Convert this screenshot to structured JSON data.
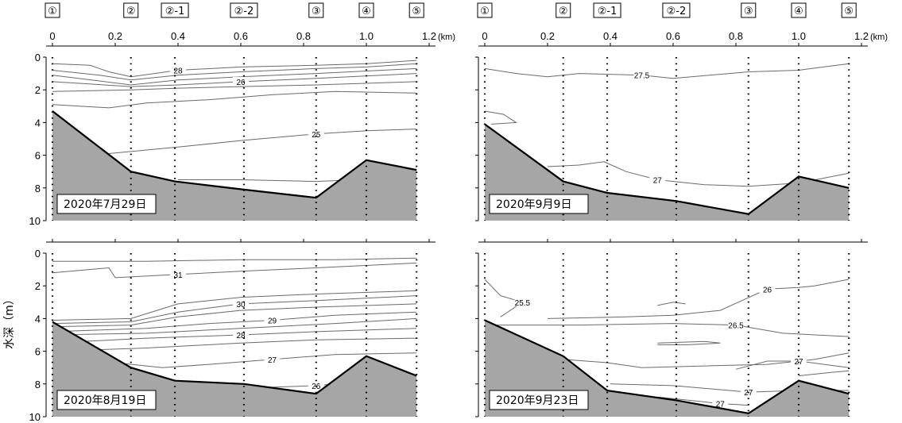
{
  "chart_data": {
    "type": "contour",
    "ylabel": "水深（m）",
    "x_unit": "(km)",
    "xlim": [
      0,
      1.2
    ],
    "ylim": [
      0,
      10
    ],
    "x_ticks": [
      "0",
      "0.2",
      "0.4",
      "0.6",
      "0.8",
      "1.0",
      "1.2"
    ],
    "y_ticks": [
      "0",
      "2",
      "4",
      "6",
      "8",
      "10"
    ],
    "stations": [
      {
        "label": "①",
        "x": 0.0
      },
      {
        "label": "②",
        "x": 0.25
      },
      {
        "label": "②-1",
        "x": 0.39
      },
      {
        "label": "②-2",
        "x": 0.61
      },
      {
        "label": "③",
        "x": 0.84
      },
      {
        "label": "④",
        "x": 1.0
      },
      {
        "label": "⑤",
        "x": 1.16
      }
    ],
    "panels": [
      {
        "date": "2020年7月29日",
        "bottom": [
          [
            0,
            3.3
          ],
          [
            0.25,
            7.0
          ],
          [
            0.39,
            7.6
          ],
          [
            0.61,
            8.1
          ],
          [
            0.84,
            8.6
          ],
          [
            1.0,
            6.3
          ],
          [
            1.16,
            6.9
          ]
        ],
        "contours": [
          {
            "level": "28",
            "points": [
              [
                0,
                0.4
              ],
              [
                0.12,
                0.5
              ],
              [
                0.18,
                0.9
              ],
              [
                0.25,
                1.2
              ],
              [
                0.4,
                0.8
              ],
              [
                0.6,
                0.6
              ],
              [
                0.84,
                0.5
              ],
              [
                1.0,
                0.4
              ],
              [
                1.16,
                0.2
              ]
            ]
          },
          {
            "level": "",
            "points": [
              [
                0,
                0.8
              ],
              [
                0.15,
                1.1
              ],
              [
                0.25,
                1.4
              ],
              [
                0.4,
                1.1
              ],
              [
                0.6,
                0.9
              ],
              [
                0.84,
                0.7
              ],
              [
                1.0,
                0.6
              ],
              [
                1.16,
                0.4
              ]
            ]
          },
          {
            "level": "",
            "points": [
              [
                0,
                1.1
              ],
              [
                0.25,
                1.7
              ],
              [
                0.4,
                1.4
              ],
              [
                0.6,
                1.2
              ],
              [
                0.84,
                1.0
              ],
              [
                1.16,
                0.7
              ]
            ]
          },
          {
            "level": "26",
            "points": [
              [
                0,
                1.5
              ],
              [
                0.25,
                1.8
              ],
              [
                0.4,
                1.7
              ],
              [
                0.6,
                1.5
              ],
              [
                0.84,
                1.3
              ],
              [
                1.16,
                1.0
              ]
            ]
          },
          {
            "level": "",
            "points": [
              [
                0,
                2.1
              ],
              [
                0.25,
                2.0
              ],
              [
                0.4,
                1.9
              ],
              [
                0.6,
                1.8
              ],
              [
                0.84,
                1.7
              ],
              [
                1.16,
                1.5
              ]
            ]
          },
          {
            "level": "",
            "points": [
              [
                0,
                2.9
              ],
              [
                0.18,
                3.1
              ],
              [
                0.3,
                2.8
              ],
              [
                0.5,
                2.6
              ],
              [
                0.7,
                2.3
              ],
              [
                0.9,
                2.1
              ],
              [
                1.16,
                2.2
              ]
            ]
          },
          {
            "level": "25",
            "points": [
              [
                0.18,
                5.9
              ],
              [
                0.4,
                5.5
              ],
              [
                0.6,
                5.1
              ],
              [
                0.84,
                4.7
              ],
              [
                1.0,
                4.5
              ],
              [
                1.16,
                4.4
              ]
            ]
          },
          {
            "level": "",
            "points": [
              [
                0.4,
                7.5
              ],
              [
                0.6,
                7.5
              ],
              [
                0.84,
                7.6
              ],
              [
                0.97,
                7.5
              ]
            ]
          }
        ]
      },
      {
        "date": "2020年8月19日",
        "bottom": [
          [
            0,
            4.2
          ],
          [
            0.25,
            7.0
          ],
          [
            0.39,
            7.8
          ],
          [
            0.61,
            8.0
          ],
          [
            0.84,
            8.6
          ],
          [
            1.0,
            6.3
          ],
          [
            1.16,
            7.5
          ]
        ],
        "contours": [
          {
            "level": "",
            "points": [
              [
                0,
                0.5
              ],
              [
                0.3,
                0.5
              ],
              [
                0.6,
                0.4
              ],
              [
                0.9,
                0.4
              ],
              [
                1.16,
                0.3
              ]
            ]
          },
          {
            "level": "31",
            "points": [
              [
                0,
                1.2
              ],
              [
                0.18,
                0.9
              ],
              [
                0.2,
                1.5
              ],
              [
                0.4,
                1.3
              ],
              [
                0.6,
                1.1
              ],
              [
                0.84,
                0.9
              ],
              [
                1.16,
                0.6
              ]
            ]
          },
          {
            "level": "",
            "points": [
              [
                0,
                4.1
              ],
              [
                0.25,
                4.0
              ],
              [
                0.4,
                3.1
              ],
              [
                0.6,
                2.7
              ],
              [
                0.84,
                2.5
              ],
              [
                1.16,
                2.3
              ]
            ]
          },
          {
            "level": "30",
            "points": [
              [
                0,
                4.3
              ],
              [
                0.25,
                4.2
              ],
              [
                0.4,
                3.6
              ],
              [
                0.6,
                3.1
              ],
              [
                0.84,
                2.9
              ],
              [
                1.16,
                2.6
              ]
            ]
          },
          {
            "level": "",
            "points": [
              [
                0,
                4.5
              ],
              [
                0.25,
                4.4
              ],
              [
                0.4,
                3.9
              ],
              [
                0.6,
                3.5
              ],
              [
                0.84,
                3.3
              ],
              [
                1.16,
                3.1
              ]
            ]
          },
          {
            "level": "29",
            "points": [
              [
                0,
                4.8
              ],
              [
                0.3,
                4.6
              ],
              [
                0.5,
                4.3
              ],
              [
                0.7,
                4.1
              ],
              [
                0.9,
                3.8
              ],
              [
                1.16,
                3.6
              ]
            ]
          },
          {
            "level": "",
            "points": [
              [
                0,
                5.0
              ],
              [
                0.3,
                4.9
              ],
              [
                0.5,
                4.7
              ],
              [
                0.7,
                4.5
              ],
              [
                0.9,
                4.3
              ],
              [
                1.16,
                4.0
              ]
            ]
          },
          {
            "level": "28",
            "points": [
              [
                0,
                5.5
              ],
              [
                0.3,
                5.2
              ],
              [
                0.6,
                5.0
              ],
              [
                0.84,
                4.8
              ],
              [
                1.16,
                4.6
              ]
            ]
          },
          {
            "level": "",
            "points": [
              [
                0,
                6.0
              ],
              [
                0.3,
                5.8
              ],
              [
                0.6,
                5.5
              ],
              [
                0.84,
                5.3
              ],
              [
                1.16,
                5.2
              ]
            ]
          },
          {
            "level": "27",
            "points": [
              [
                0.2,
                6.7
              ],
              [
                0.35,
                7.0
              ],
              [
                0.5,
                6.8
              ],
              [
                0.7,
                6.5
              ],
              [
                0.9,
                6.2
              ],
              [
                1.16,
                6.1
              ]
            ]
          },
          {
            "level": "26",
            "points": [
              [
                0.5,
                8.1
              ],
              [
                0.7,
                8.2
              ],
              [
                0.84,
                8.1
              ],
              [
                0.9,
                8.0
              ]
            ]
          }
        ]
      },
      {
        "date": "2020年9月9日",
        "bottom": [
          [
            0,
            4.1
          ],
          [
            0.25,
            7.6
          ],
          [
            0.39,
            8.3
          ],
          [
            0.61,
            8.8
          ],
          [
            0.84,
            9.6
          ],
          [
            1.0,
            7.3
          ],
          [
            1.16,
            8.0
          ]
        ],
        "contours": [
          {
            "level": "27.5",
            "points": [
              [
                0,
                0.7
              ],
              [
                0.1,
                1.0
              ],
              [
                0.2,
                1.2
              ],
              [
                0.3,
                1.0
              ],
              [
                0.5,
                1.1
              ],
              [
                0.6,
                1.3
              ],
              [
                0.84,
                0.9
              ],
              [
                1.0,
                0.8
              ],
              [
                1.16,
                0.4
              ]
            ]
          },
          {
            "level": "",
            "points": [
              [
                0,
                3.3
              ],
              [
                0.06,
                3.5
              ],
              [
                0.1,
                4.0
              ],
              [
                0.02,
                4.1
              ]
            ]
          },
          {
            "level": "27",
            "points": [
              [
                0.2,
                6.7
              ],
              [
                0.3,
                6.6
              ],
              [
                0.38,
                6.4
              ],
              [
                0.45,
                7.0
              ],
              [
                0.55,
                7.5
              ],
              [
                0.7,
                7.8
              ],
              [
                0.84,
                7.9
              ],
              [
                1.0,
                7.7
              ],
              [
                1.16,
                7.1
              ]
            ]
          }
        ]
      },
      {
        "date": "2020年9月23日",
        "bottom": [
          [
            0,
            4.1
          ],
          [
            0.25,
            6.3
          ],
          [
            0.39,
            8.4
          ],
          [
            0.61,
            9.0
          ],
          [
            0.84,
            9.8
          ],
          [
            1.0,
            7.8
          ],
          [
            1.16,
            8.6
          ]
        ],
        "contours": [
          {
            "level": "25.5",
            "points": [
              [
                0,
                1.6
              ],
              [
                0.05,
                2.6
              ],
              [
                0.12,
                3.0
              ],
              [
                0.05,
                3.9
              ]
            ]
          },
          {
            "level": "26",
            "points": [
              [
                0.2,
                4.0
              ],
              [
                0.45,
                3.9
              ],
              [
                0.6,
                3.8
              ],
              [
                0.75,
                3.5
              ],
              [
                0.9,
                2.2
              ],
              [
                1.0,
                2.1
              ],
              [
                1.05,
                2.0
              ],
              [
                1.16,
                1.6
              ]
            ]
          },
          {
            "level": "26.5",
            "points": [
              [
                0,
                4.4
              ],
              [
                0.3,
                4.4
              ],
              [
                0.6,
                4.3
              ],
              [
                0.8,
                4.4
              ],
              [
                0.95,
                4.9
              ],
              [
                1.16,
                5.1
              ]
            ]
          },
          {
            "level": "",
            "points": [
              [
                0.55,
                5.6
              ],
              [
                0.65,
                5.6
              ],
              [
                0.75,
                5.5
              ],
              [
                0.7,
                5.4
              ],
              [
                0.55,
                5.5
              ]
            ]
          },
          {
            "level": "",
            "points": [
              [
                0.55,
                3.2
              ],
              [
                0.6,
                3.0
              ],
              [
                0.64,
                3.1
              ]
            ]
          },
          {
            "level": "",
            "points": [
              [
                0.25,
                6.5
              ],
              [
                0.39,
                6.7
              ],
              [
                0.5,
                7.0
              ],
              [
                0.7,
                6.9
              ],
              [
                0.9,
                6.8
              ],
              [
                1.05,
                6.5
              ],
              [
                1.16,
                6.1
              ]
            ]
          },
          {
            "level": "27",
            "points": [
              [
                0.8,
                7.1
              ],
              [
                0.9,
                6.6
              ],
              [
                1.0,
                6.6
              ],
              [
                1.16,
                7.0
              ]
            ]
          },
          {
            "level": "27",
            "points": [
              [
                0.4,
                8.0
              ],
              [
                0.6,
                8.1
              ],
              [
                0.84,
                8.5
              ],
              [
                1.0,
                8.4
              ],
              [
                1.16,
                8.4
              ]
            ]
          },
          {
            "level": "27",
            "points": [
              [
                0.55,
                8.8
              ],
              [
                0.75,
                9.2
              ],
              [
                0.84,
                9.3
              ]
            ]
          },
          {
            "level": "",
            "points": [
              [
                1.0,
                7.5
              ],
              [
                1.1,
                7.3
              ],
              [
                1.16,
                7.2
              ]
            ]
          }
        ]
      }
    ]
  }
}
